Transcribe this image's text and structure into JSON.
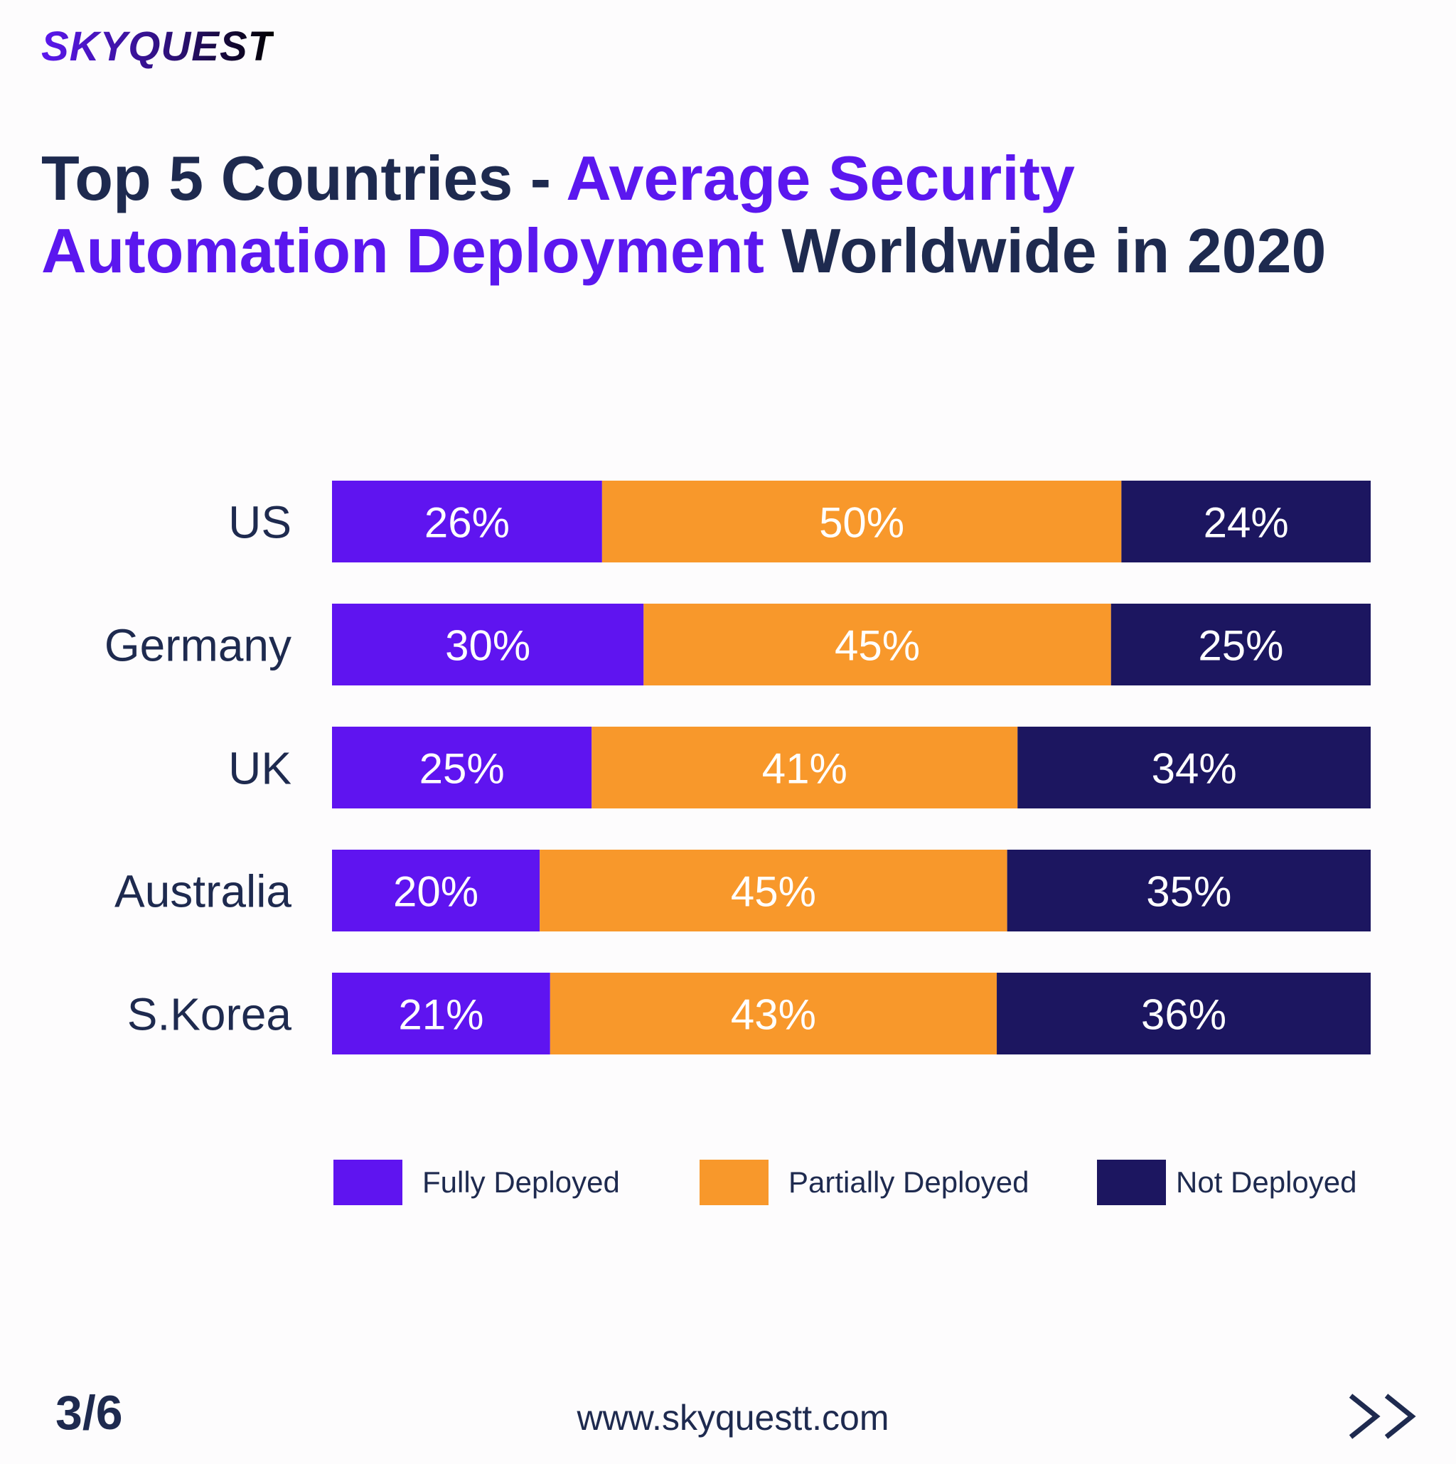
{
  "brand": {
    "logo_text": "SKYQUEST"
  },
  "title": {
    "part1": "Top 5 Countries - ",
    "part2": "Average Security Automation Deployment",
    "part3": " Worldwide in 2020"
  },
  "chart_data": {
    "type": "bar",
    "orientation": "horizontal",
    "stacked": true,
    "categories": [
      "US",
      "Germany",
      "UK",
      "Australia",
      "S.Korea"
    ],
    "series": [
      {
        "name": "Fully Deployed",
        "values": [
          26,
          30,
          25,
          20,
          21
        ],
        "color": "#5f14f0",
        "labels": [
          "26%",
          "30%",
          "25%",
          "20%",
          "21%"
        ]
      },
      {
        "name": "Partially Deployed",
        "values": [
          50,
          45,
          41,
          45,
          43
        ],
        "color": "#f8982b",
        "labels": [
          "50%",
          "45%",
          "41%",
          "45%",
          "43%"
        ]
      },
      {
        "name": "Not Deployed",
        "values": [
          24,
          25,
          34,
          35,
          36
        ],
        "color": "#1c1660",
        "labels": [
          "24%",
          "25%",
          "34%",
          "35%",
          "36%"
        ]
      }
    ],
    "xlim": [
      0,
      100
    ],
    "grid": false,
    "legend": "bottom"
  },
  "footer": {
    "page": "3/6",
    "url": "www.skyquestt.com",
    "next_icon": "double-chevron-right-icon"
  }
}
